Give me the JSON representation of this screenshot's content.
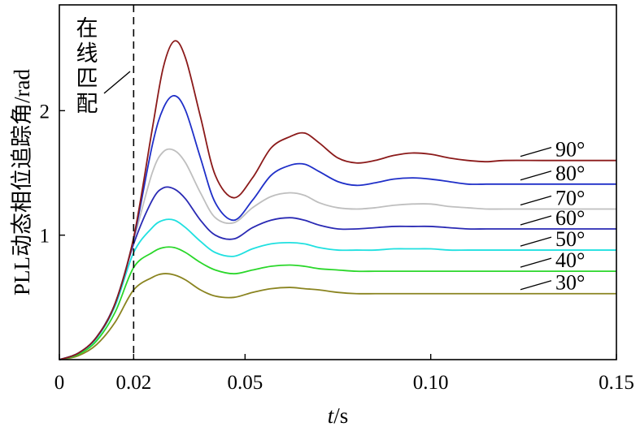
{
  "chart_data": {
    "type": "line",
    "title": "",
    "xlabel": {
      "var": "t",
      "unit": "/s"
    },
    "ylabel": "PLL动态相位追踪角/rad",
    "xlim": [
      0,
      0.15
    ],
    "ylim": [
      0,
      2.85
    ],
    "xticks": [
      {
        "value": 0,
        "label": "0"
      },
      {
        "value": 0.02,
        "label": "0.02"
      },
      {
        "value": 0.05,
        "label": "0.05"
      },
      {
        "value": 0.1,
        "label": "0.10"
      },
      {
        "value": 0.15,
        "label": "0.15"
      }
    ],
    "yticks": [
      {
        "value": 1,
        "label": "1"
      },
      {
        "value": 2,
        "label": "2"
      }
    ],
    "grid": false,
    "annotation": {
      "text_chars": [
        "在",
        "线",
        "匹",
        "配"
      ],
      "vline_x": 0.02
    },
    "series": [
      {
        "name": "90°",
        "color": "#8b1a1a",
        "x": [
          0,
          0.005,
          0.01,
          0.015,
          0.02,
          0.025,
          0.028,
          0.031,
          0.034,
          0.038,
          0.042,
          0.047,
          0.052,
          0.057,
          0.062,
          0.066,
          0.07,
          0.075,
          0.08,
          0.085,
          0.09,
          0.095,
          0.1,
          0.105,
          0.11,
          0.115,
          0.12,
          0.13,
          0.14,
          0.15
        ],
        "y": [
          0,
          0.05,
          0.18,
          0.45,
          0.98,
          1.85,
          2.35,
          2.56,
          2.42,
          1.95,
          1.48,
          1.3,
          1.46,
          1.7,
          1.79,
          1.82,
          1.74,
          1.62,
          1.58,
          1.6,
          1.64,
          1.66,
          1.65,
          1.62,
          1.6,
          1.59,
          1.6,
          1.6,
          1.6,
          1.6
        ]
      },
      {
        "name": "80°",
        "color": "#1f2fc8",
        "x": [
          0,
          0.005,
          0.01,
          0.015,
          0.02,
          0.025,
          0.028,
          0.031,
          0.034,
          0.038,
          0.042,
          0.047,
          0.052,
          0.057,
          0.062,
          0.066,
          0.07,
          0.075,
          0.08,
          0.085,
          0.09,
          0.095,
          0.1,
          0.105,
          0.11,
          0.115,
          0.12,
          0.13,
          0.14,
          0.15
        ],
        "y": [
          0,
          0.05,
          0.18,
          0.45,
          0.97,
          1.72,
          2.02,
          2.12,
          2.0,
          1.62,
          1.26,
          1.12,
          1.28,
          1.48,
          1.56,
          1.57,
          1.51,
          1.43,
          1.4,
          1.42,
          1.45,
          1.46,
          1.45,
          1.43,
          1.41,
          1.41,
          1.41,
          1.41,
          1.41,
          1.41
        ]
      },
      {
        "name": "70°",
        "color": "#bfbfbf",
        "x": [
          0,
          0.005,
          0.01,
          0.015,
          0.02,
          0.025,
          0.028,
          0.031,
          0.034,
          0.038,
          0.042,
          0.047,
          0.052,
          0.057,
          0.062,
          0.066,
          0.07,
          0.075,
          0.08,
          0.085,
          0.09,
          0.095,
          0.1,
          0.105,
          0.11,
          0.115,
          0.12,
          0.13,
          0.14,
          0.15
        ],
        "y": [
          0,
          0.05,
          0.18,
          0.45,
          0.96,
          1.5,
          1.67,
          1.68,
          1.58,
          1.34,
          1.14,
          1.1,
          1.22,
          1.31,
          1.34,
          1.32,
          1.26,
          1.22,
          1.21,
          1.22,
          1.24,
          1.25,
          1.25,
          1.23,
          1.22,
          1.21,
          1.21,
          1.21,
          1.21,
          1.21
        ]
      },
      {
        "name": "60°",
        "color": "#2a2ab4",
        "x": [
          0,
          0.005,
          0.01,
          0.015,
          0.02,
          0.025,
          0.028,
          0.031,
          0.034,
          0.038,
          0.042,
          0.047,
          0.052,
          0.057,
          0.062,
          0.066,
          0.07,
          0.075,
          0.08,
          0.085,
          0.09,
          0.095,
          0.1,
          0.105,
          0.11,
          0.115,
          0.12,
          0.13,
          0.14,
          0.15
        ],
        "y": [
          0,
          0.05,
          0.18,
          0.45,
          0.93,
          1.28,
          1.38,
          1.37,
          1.29,
          1.12,
          1.0,
          0.97,
          1.06,
          1.12,
          1.14,
          1.12,
          1.08,
          1.05,
          1.05,
          1.06,
          1.07,
          1.07,
          1.07,
          1.06,
          1.05,
          1.05,
          1.05,
          1.05,
          1.05,
          1.05
        ]
      },
      {
        "name": "50°",
        "color": "#20e0e0",
        "x": [
          0,
          0.005,
          0.01,
          0.015,
          0.02,
          0.025,
          0.028,
          0.031,
          0.034,
          0.038,
          0.042,
          0.047,
          0.052,
          0.057,
          0.062,
          0.066,
          0.07,
          0.075,
          0.08,
          0.085,
          0.09,
          0.095,
          0.1,
          0.105,
          0.11,
          0.115,
          0.12,
          0.13,
          0.14,
          0.15
        ],
        "y": [
          0,
          0.05,
          0.17,
          0.43,
          0.86,
          1.06,
          1.12,
          1.12,
          1.06,
          0.95,
          0.86,
          0.83,
          0.89,
          0.93,
          0.94,
          0.93,
          0.9,
          0.88,
          0.88,
          0.88,
          0.89,
          0.89,
          0.89,
          0.88,
          0.88,
          0.88,
          0.88,
          0.88,
          0.88,
          0.88
        ]
      },
      {
        "name": "40°",
        "color": "#2ad72a",
        "x": [
          0,
          0.005,
          0.01,
          0.015,
          0.02,
          0.025,
          0.028,
          0.031,
          0.034,
          0.038,
          0.042,
          0.047,
          0.052,
          0.057,
          0.062,
          0.066,
          0.07,
          0.075,
          0.08,
          0.085,
          0.09,
          0.095,
          0.1,
          0.105,
          0.11,
          0.115,
          0.12,
          0.13,
          0.14,
          0.15
        ],
        "y": [
          0,
          0.04,
          0.15,
          0.38,
          0.74,
          0.86,
          0.9,
          0.9,
          0.86,
          0.78,
          0.72,
          0.69,
          0.72,
          0.75,
          0.76,
          0.75,
          0.73,
          0.72,
          0.71,
          0.71,
          0.71,
          0.71,
          0.71,
          0.71,
          0.71,
          0.71,
          0.71,
          0.71,
          0.71,
          0.71
        ]
      },
      {
        "name": "30°",
        "color": "#8a8420",
        "x": [
          0,
          0.005,
          0.01,
          0.015,
          0.02,
          0.025,
          0.028,
          0.031,
          0.034,
          0.038,
          0.042,
          0.047,
          0.052,
          0.057,
          0.062,
          0.066,
          0.07,
          0.075,
          0.08,
          0.085,
          0.09,
          0.095,
          0.1,
          0.105,
          0.11,
          0.115,
          0.12,
          0.13,
          0.14,
          0.15
        ],
        "y": [
          0,
          0.03,
          0.12,
          0.3,
          0.56,
          0.66,
          0.69,
          0.68,
          0.64,
          0.56,
          0.51,
          0.5,
          0.54,
          0.57,
          0.58,
          0.57,
          0.56,
          0.54,
          0.53,
          0.53,
          0.53,
          0.53,
          0.53,
          0.53,
          0.53,
          0.53,
          0.53,
          0.53,
          0.53,
          0.53
        ]
      }
    ]
  }
}
